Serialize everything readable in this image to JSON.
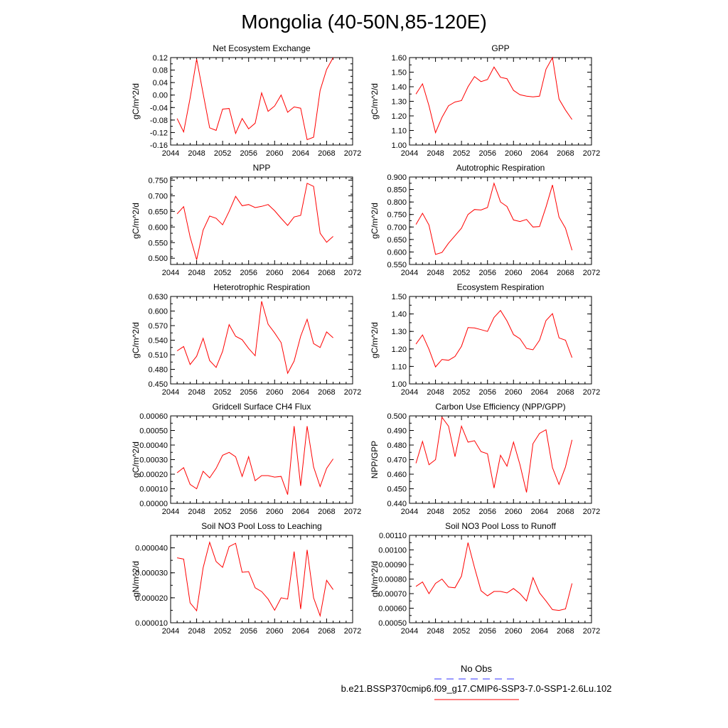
{
  "page_title": "Mongolia (40-50N,85-120E)",
  "colors": {
    "series": "#ff0000",
    "obs": "#3333ff",
    "axis": "#000000"
  },
  "legend": [
    {
      "label": "No Obs",
      "color": "#3333ff",
      "style": "dashed"
    },
    {
      "label": "b.e21.BSSP370cmip6.f09_g17.CMIP6-SSP3-7.0-SSP1-2.6Lu.102",
      "color": "#ff0000",
      "style": "solid"
    }
  ],
  "chart_data": [
    {
      "type": "line",
      "title": "Net Ecosystem Exchange",
      "ylabel": "gC/m^2/d",
      "xlim": [
        2044,
        2072
      ],
      "ylim": [
        -0.16,
        0.12
      ],
      "xticks": [
        "2044",
        "2048",
        "2052",
        "2056",
        "2060",
        "2064",
        "2068",
        "2072"
      ],
      "yticks": [
        "-0.16",
        "-0.12",
        "-0.08",
        "-0.04",
        "0.00",
        "0.04",
        "0.08",
        "0.12"
      ],
      "x": [
        2045,
        2046,
        2047,
        2048,
        2049,
        2050,
        2051,
        2052,
        2053,
        2054,
        2055,
        2056,
        2057,
        2058,
        2059,
        2060,
        2061,
        2062,
        2063,
        2064,
        2065,
        2066,
        2067,
        2068,
        2069
      ],
      "values": [
        -0.075,
        -0.118,
        -0.01,
        0.115,
        0.005,
        -0.105,
        -0.113,
        -0.045,
        -0.043,
        -0.123,
        -0.075,
        -0.108,
        -0.09,
        0.007,
        -0.052,
        -0.035,
        0.0,
        -0.055,
        -0.038,
        -0.042,
        -0.143,
        -0.135,
        0.015,
        0.082,
        0.12
      ]
    },
    {
      "type": "line",
      "title": "GPP",
      "ylabel": "gC/m^2/d",
      "xlim": [
        2044,
        2072
      ],
      "ylim": [
        1.0,
        1.6
      ],
      "xticks": [
        "2044",
        "2048",
        "2052",
        "2056",
        "2060",
        "2064",
        "2068",
        "2072"
      ],
      "yticks": [
        "1.00",
        "1.10",
        "1.20",
        "1.30",
        "1.40",
        "1.50",
        "1.60"
      ],
      "x": [
        2045,
        2046,
        2047,
        2048,
        2049,
        2050,
        2051,
        2052,
        2053,
        2054,
        2055,
        2056,
        2057,
        2058,
        2059,
        2060,
        2061,
        2062,
        2063,
        2064,
        2065,
        2066,
        2067,
        2068,
        2069
      ],
      "values": [
        1.35,
        1.42,
        1.27,
        1.085,
        1.19,
        1.27,
        1.295,
        1.305,
        1.4,
        1.47,
        1.435,
        1.45,
        1.535,
        1.465,
        1.455,
        1.375,
        1.345,
        1.335,
        1.33,
        1.335,
        1.52,
        1.6,
        1.315,
        1.24,
        1.175
      ]
    },
    {
      "type": "line",
      "title": "NPP",
      "ylabel": "gC/m^2/d",
      "xlim": [
        2044,
        2072
      ],
      "ylim": [
        0.48,
        0.76
      ],
      "xticks": [
        "2044",
        "2048",
        "2052",
        "2056",
        "2060",
        "2064",
        "2068",
        "2072"
      ],
      "yticks": [
        "0.500",
        "0.550",
        "0.600",
        "0.650",
        "0.700",
        "0.750"
      ],
      "x": [
        2045,
        2046,
        2047,
        2048,
        2049,
        2050,
        2051,
        2052,
        2053,
        2054,
        2055,
        2056,
        2057,
        2058,
        2059,
        2060,
        2061,
        2062,
        2063,
        2064,
        2065,
        2066,
        2067,
        2068,
        2069
      ],
      "values": [
        0.642,
        0.665,
        0.568,
        0.495,
        0.59,
        0.635,
        0.628,
        0.607,
        0.65,
        0.698,
        0.668,
        0.672,
        0.662,
        0.666,
        0.672,
        0.652,
        0.628,
        0.605,
        0.632,
        0.637,
        0.74,
        0.73,
        0.58,
        0.551,
        0.57
      ]
    },
    {
      "type": "line",
      "title": "Autotrophic Respiration",
      "ylabel": "gC/m^2/d",
      "xlim": [
        2044,
        2072
      ],
      "ylim": [
        0.55,
        0.9
      ],
      "xticks": [
        "2044",
        "2048",
        "2052",
        "2056",
        "2060",
        "2064",
        "2068",
        "2072"
      ],
      "yticks": [
        "0.550",
        "0.600",
        "0.650",
        "0.700",
        "0.750",
        "0.800",
        "0.850",
        "0.900"
      ],
      "x": [
        2045,
        2046,
        2047,
        2048,
        2049,
        2050,
        2051,
        2052,
        2053,
        2054,
        2055,
        2056,
        2057,
        2058,
        2059,
        2060,
        2061,
        2062,
        2063,
        2064,
        2065,
        2066,
        2067,
        2068,
        2069
      ],
      "values": [
        0.71,
        0.755,
        0.708,
        0.59,
        0.598,
        0.635,
        0.665,
        0.695,
        0.75,
        0.77,
        0.768,
        0.778,
        0.875,
        0.8,
        0.782,
        0.728,
        0.722,
        0.73,
        0.7,
        0.702,
        0.78,
        0.868,
        0.74,
        0.695,
        0.607
      ]
    },
    {
      "type": "line",
      "title": "Heterotrophic Respiration",
      "ylabel": "gC/m^2/d",
      "xlim": [
        2044,
        2072
      ],
      "ylim": [
        0.45,
        0.63
      ],
      "xticks": [
        "2044",
        "2048",
        "2052",
        "2056",
        "2060",
        "2064",
        "2068",
        "2072"
      ],
      "yticks": [
        "0.450",
        "0.480",
        "0.510",
        "0.540",
        "0.570",
        "0.600",
        "0.630"
      ],
      "x": [
        2045,
        2046,
        2047,
        2048,
        2049,
        2050,
        2051,
        2052,
        2053,
        2054,
        2055,
        2056,
        2057,
        2058,
        2059,
        2060,
        2061,
        2062,
        2063,
        2064,
        2065,
        2066,
        2067,
        2068,
        2069
      ],
      "values": [
        0.518,
        0.527,
        0.49,
        0.507,
        0.544,
        0.498,
        0.484,
        0.517,
        0.572,
        0.548,
        0.541,
        0.523,
        0.508,
        0.62,
        0.573,
        0.555,
        0.535,
        0.472,
        0.497,
        0.548,
        0.583,
        0.533,
        0.525,
        0.557,
        0.545
      ]
    },
    {
      "type": "line",
      "title": "Ecosystem Respiration",
      "ylabel": "gC/m^2/d",
      "xlim": [
        2044,
        2072
      ],
      "ylim": [
        1.0,
        1.5
      ],
      "xticks": [
        "2044",
        "2048",
        "2052",
        "2056",
        "2060",
        "2064",
        "2068",
        "2072"
      ],
      "yticks": [
        "1.00",
        "1.10",
        "1.20",
        "1.30",
        "1.40",
        "1.50"
      ],
      "x": [
        2045,
        2046,
        2047,
        2048,
        2049,
        2050,
        2051,
        2052,
        2053,
        2054,
        2055,
        2056,
        2057,
        2058,
        2059,
        2060,
        2061,
        2062,
        2063,
        2064,
        2065,
        2066,
        2067,
        2068,
        2069
      ],
      "values": [
        1.228,
        1.28,
        1.198,
        1.097,
        1.14,
        1.135,
        1.157,
        1.215,
        1.322,
        1.32,
        1.31,
        1.3,
        1.38,
        1.42,
        1.36,
        1.282,
        1.258,
        1.203,
        1.195,
        1.25,
        1.362,
        1.402,
        1.263,
        1.25,
        1.15
      ]
    },
    {
      "type": "line",
      "title": "Gridcell Surface CH4 Flux",
      "ylabel": "gC/m^2/d",
      "xlim": [
        2044,
        2072
      ],
      "ylim": [
        0.0,
        0.0006
      ],
      "xticks": [
        "2044",
        "2048",
        "2052",
        "2056",
        "2060",
        "2064",
        "2068",
        "2072"
      ],
      "yticks": [
        "0.00000",
        "0.00010",
        "0.00020",
        "0.00030",
        "0.00040",
        "0.00050",
        "0.00060"
      ],
      "x": [
        2045,
        2046,
        2047,
        2048,
        2049,
        2050,
        2051,
        2052,
        2053,
        2054,
        2055,
        2056,
        2057,
        2058,
        2059,
        2060,
        2061,
        2062,
        2063,
        2064,
        2065,
        2066,
        2067,
        2068,
        2069
      ],
      "values": [
        0.00021,
        0.000245,
        0.00013,
        0.0001,
        0.00022,
        0.000175,
        0.00024,
        0.00033,
        0.00035,
        0.00032,
        0.000185,
        0.00032,
        0.000155,
        0.00019,
        0.00019,
        0.00018,
        0.000185,
        6e-05,
        0.00053,
        0.00012,
        0.00053,
        0.00025,
        0.000115,
        0.00024,
        0.000305
      ]
    },
    {
      "type": "line",
      "title": "Carbon Use Efficiency (NPP/GPP)",
      "ylabel": "NPP/GPP",
      "xlim": [
        2044,
        2072
      ],
      "ylim": [
        0.44,
        0.5
      ],
      "xticks": [
        "2044",
        "2048",
        "2052",
        "2056",
        "2060",
        "2064",
        "2068",
        "2072"
      ],
      "yticks": [
        "0.440",
        "0.450",
        "0.460",
        "0.470",
        "0.480",
        "0.490",
        "0.500"
      ],
      "x": [
        2045,
        2046,
        2047,
        2048,
        2049,
        2050,
        2051,
        2052,
        2053,
        2054,
        2055,
        2056,
        2057,
        2058,
        2059,
        2060,
        2061,
        2062,
        2063,
        2064,
        2065,
        2066,
        2067,
        2068,
        2069
      ],
      "values": [
        0.4675,
        0.4825,
        0.4665,
        0.47,
        0.499,
        0.493,
        0.472,
        0.493,
        0.482,
        0.483,
        0.4755,
        0.474,
        0.4505,
        0.473,
        0.4655,
        0.482,
        0.4665,
        0.4475,
        0.481,
        0.488,
        0.4905,
        0.4645,
        0.453,
        0.465,
        0.4835
      ]
    },
    {
      "type": "line",
      "title": "Soil NO3 Pool Loss to Leaching",
      "ylabel": "gN/m^2/d",
      "xlim": [
        2044,
        2072
      ],
      "ylim": [
        1e-05,
        4.5e-05
      ],
      "xticks": [
        "2044",
        "2048",
        "2052",
        "2056",
        "2060",
        "2064",
        "2068",
        "2072"
      ],
      "yticks": [
        "0.000010",
        "0.000020",
        "0.000030",
        "0.000040"
      ],
      "x": [
        2045,
        2046,
        2047,
        2048,
        2049,
        2050,
        2051,
        2052,
        2053,
        2054,
        2055,
        2056,
        2057,
        2058,
        2059,
        2060,
        2061,
        2062,
        2063,
        2064,
        2065,
        2066,
        2067,
        2068,
        2069
      ],
      "values": [
        3.6e-05,
        3.55e-05,
        1.8e-05,
        1.48e-05,
        3.2e-05,
        4.22e-05,
        3.45e-05,
        3.22e-05,
        4.05e-05,
        4.18e-05,
        3.02e-05,
        3.05e-05,
        2.4e-05,
        2.25e-05,
        1.95e-05,
        1.5e-05,
        2e-05,
        1.95e-05,
        3.85e-05,
        1.55e-05,
        3.92e-05,
        2e-05,
        1.28e-05,
        2.7e-05,
        2.33e-05
      ]
    },
    {
      "type": "line",
      "title": "Soil NO3 Pool Loss to Runoff",
      "ylabel": "gN/m^2/d",
      "xlim": [
        2044,
        2072
      ],
      "ylim": [
        0.0005,
        0.0011
      ],
      "xticks": [
        "2044",
        "2048",
        "2052",
        "2056",
        "2060",
        "2064",
        "2068",
        "2072"
      ],
      "yticks": [
        "0.00050",
        "0.00060",
        "0.00070",
        "0.00080",
        "0.00090",
        "0.00100",
        "0.00110"
      ],
      "x": [
        2045,
        2046,
        2047,
        2048,
        2049,
        2050,
        2051,
        2052,
        2053,
        2054,
        2055,
        2056,
        2057,
        2058,
        2059,
        2060,
        2061,
        2062,
        2063,
        2064,
        2065,
        2066,
        2067,
        2068,
        2069
      ],
      "values": [
        0.00075,
        0.00078,
        0.0007,
        0.00077,
        0.0008,
        0.000745,
        0.00074,
        0.00082,
        0.00105,
        0.00088,
        0.00072,
        0.000685,
        0.000715,
        0.000715,
        0.000705,
        0.000735,
        0.0007,
        0.00065,
        0.00081,
        0.000705,
        0.00065,
        0.00059,
        0.000585,
        0.000595,
        0.00077
      ]
    }
  ]
}
